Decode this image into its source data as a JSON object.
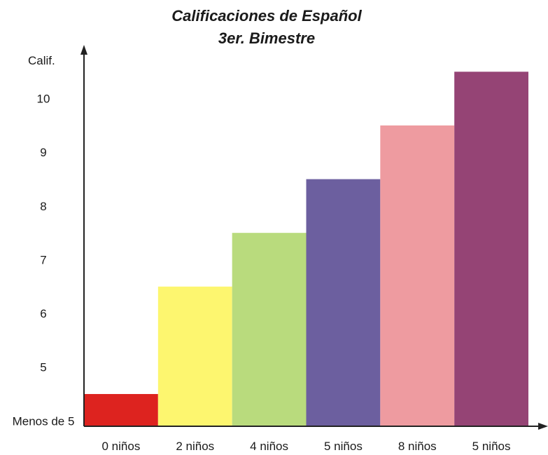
{
  "chart_data": {
    "type": "bar",
    "title": "Calificaciones de Español",
    "subtitle": "3er. Bimestre",
    "ylabel": "Calif.",
    "xlabel": "",
    "categories": [
      "0 niños",
      "2 niños",
      "4 niños",
      "5 niños",
      "8 niños",
      "5 niños"
    ],
    "values": [
      4.5,
      6.5,
      7.5,
      8.5,
      9.5,
      10.5
    ],
    "colors": [
      "#dd231f",
      "#fdf66f",
      "#b9db7d",
      "#6c5f9f",
      "#ee9ba0",
      "#954475"
    ],
    "y_ticks": [
      {
        "value": 4,
        "label": "Menos de 5"
      },
      {
        "value": 5,
        "label": "5"
      },
      {
        "value": 6,
        "label": "6"
      },
      {
        "value": 7,
        "label": "7"
      },
      {
        "value": 8,
        "label": "8"
      },
      {
        "value": 9,
        "label": "9"
      },
      {
        "value": 10,
        "label": "10"
      }
    ],
    "ylim": [
      3.9,
      11.0
    ],
    "grid": false,
    "legend": "none"
  }
}
